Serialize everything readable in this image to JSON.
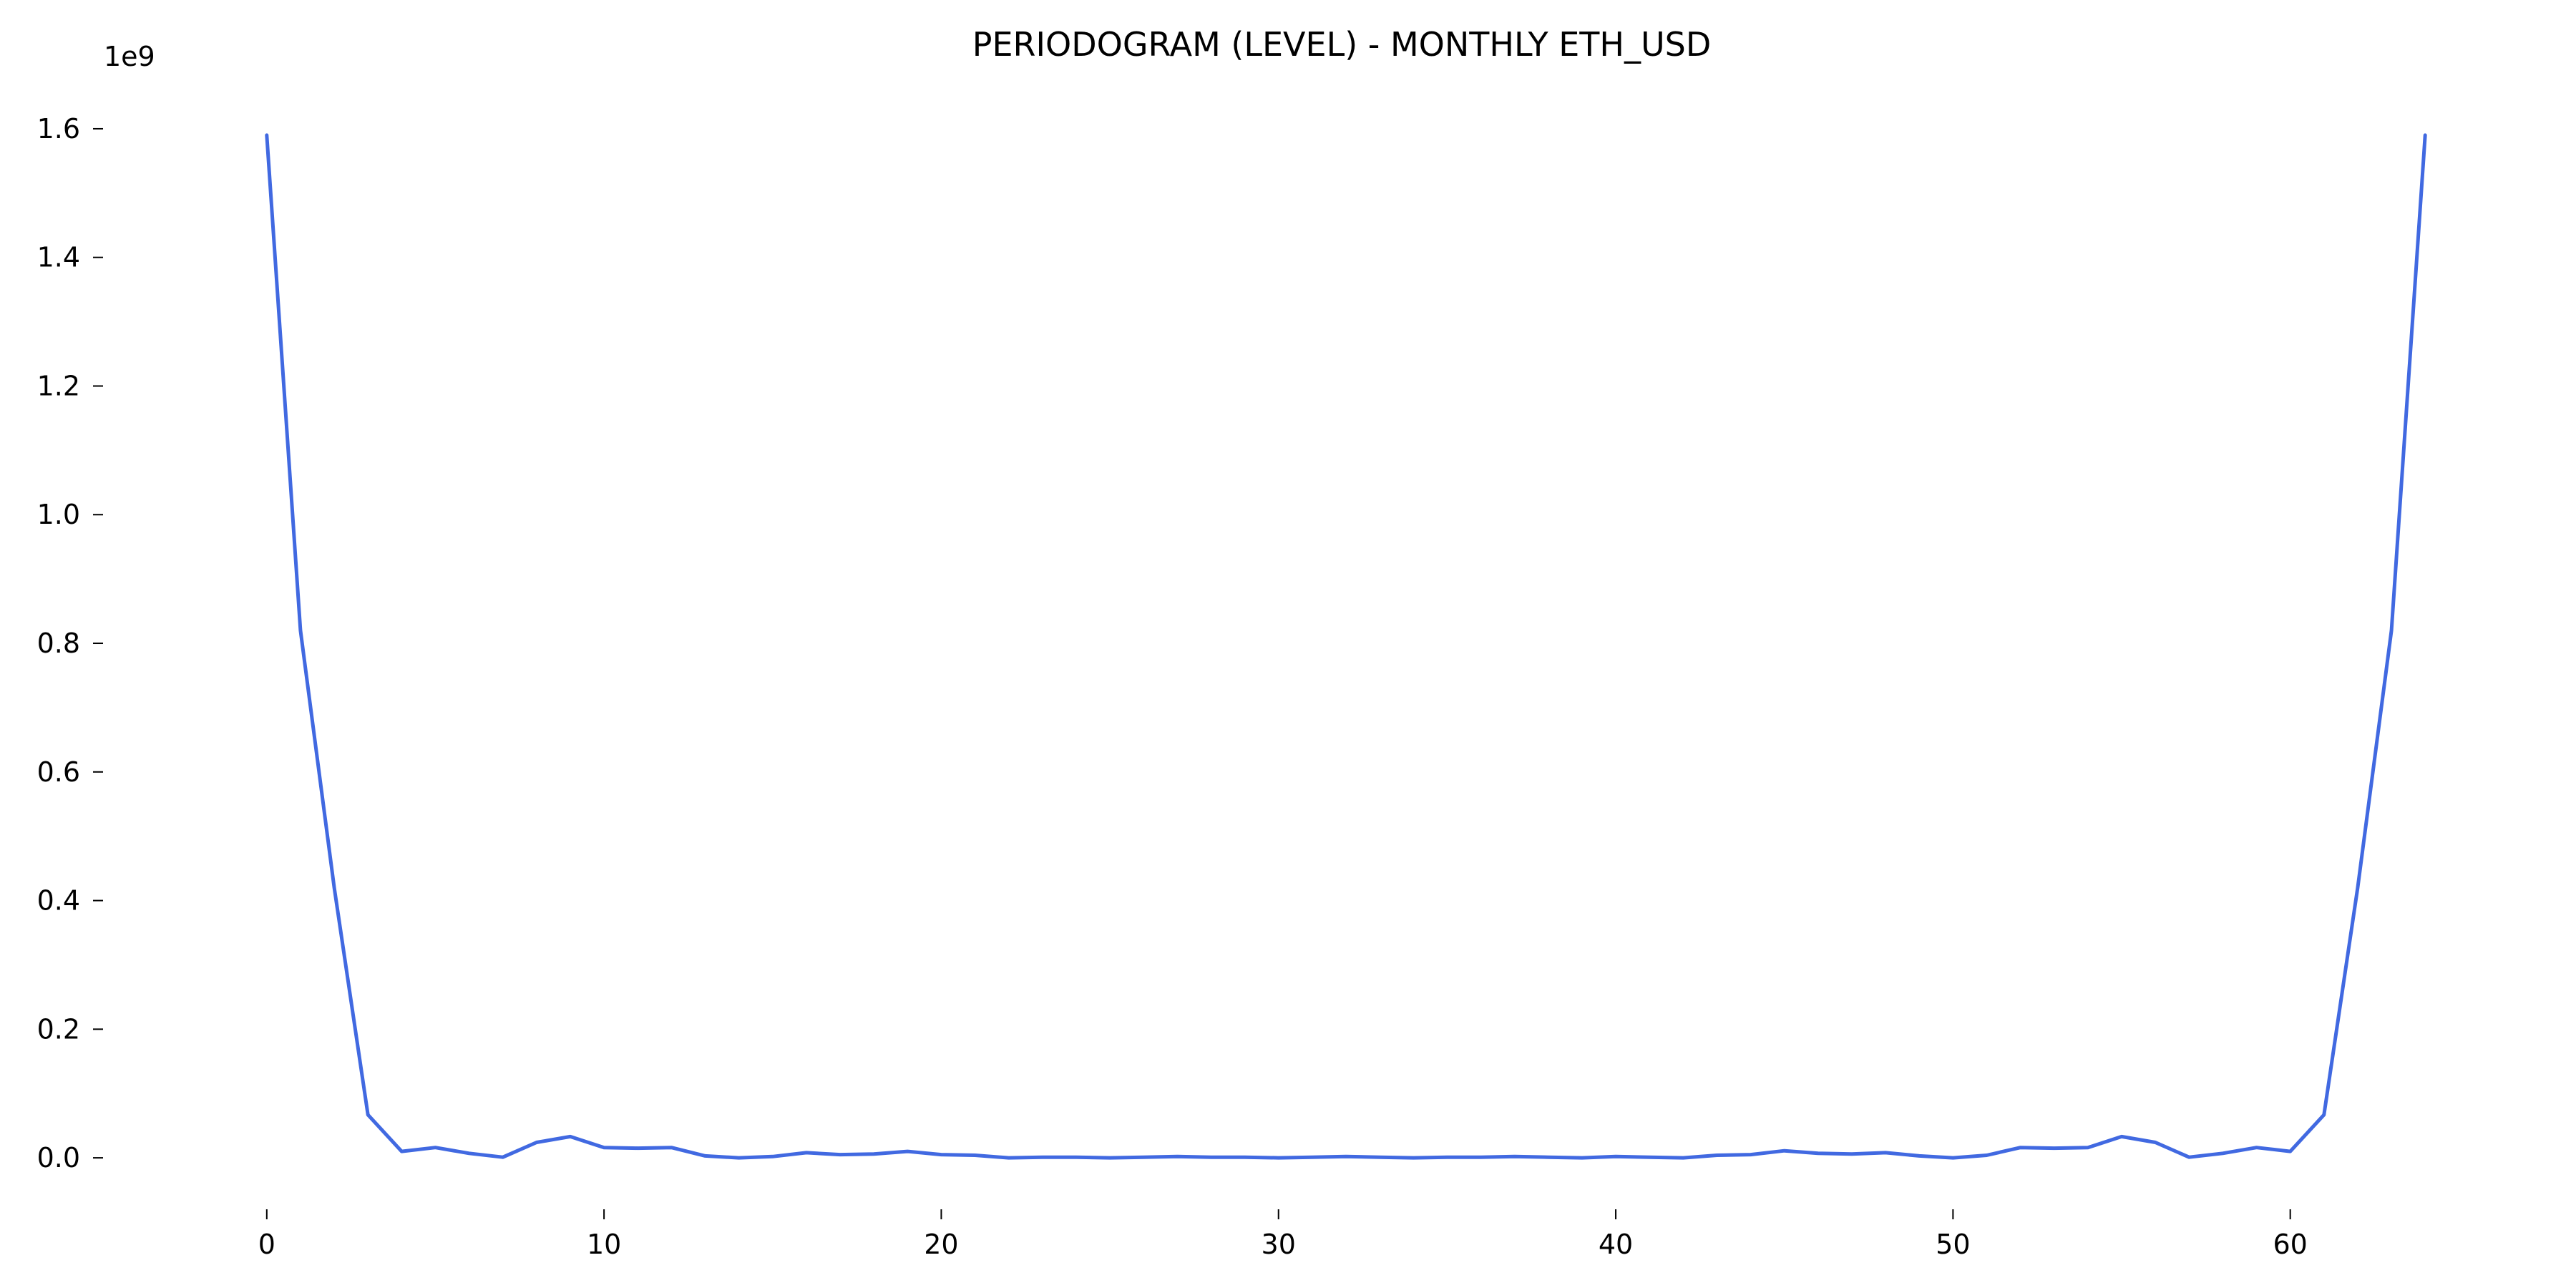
{
  "chart_data": {
    "type": "line",
    "title": "PERIODOGRAM (LEVEL) - MONTHLY ETH_USD",
    "xlabel": "",
    "ylabel": "",
    "y_offset_label": "1e9",
    "xlim": [
      -3.2,
      67.2
    ],
    "ylim": [
      -0.08,
      1.65
    ],
    "x_ticks": [
      0,
      10,
      20,
      30,
      40,
      50,
      60
    ],
    "y_ticks": [
      0.0,
      0.2,
      0.4,
      0.6,
      0.8,
      1.0,
      1.2,
      1.4,
      1.6
    ],
    "y_tick_labels": [
      "0.0",
      "0.2",
      "0.4",
      "0.6",
      "0.8",
      "1.0",
      "1.2",
      "1.4",
      "1.6"
    ],
    "x_tick_labels": [
      "0",
      "10",
      "20",
      "30",
      "40",
      "50",
      "60"
    ],
    "grid": false,
    "line_color": "#4169e1",
    "series": [
      {
        "x": [
          0,
          1,
          2,
          3,
          4,
          5,
          6,
          7,
          8,
          9,
          10,
          11,
          12,
          13,
          14,
          15,
          16,
          17,
          18,
          19,
          20,
          21,
          22,
          23,
          24,
          25,
          26,
          27,
          28,
          29,
          30,
          31,
          32,
          33,
          34,
          35,
          36,
          37,
          38,
          39,
          40,
          41,
          42,
          43,
          44,
          45,
          46,
          47,
          48,
          49,
          50,
          51,
          52,
          53,
          54,
          55,
          56,
          57,
          58,
          59,
          60,
          61,
          62,
          63,
          64
        ],
        "values": [
          1.59,
          0.82,
          0.42,
          0.067,
          0.01,
          0.016,
          0.007,
          0.001,
          0.024,
          0.033,
          0.016,
          0.015,
          0.016,
          0.003,
          0.0,
          0.002,
          0.008,
          0.005,
          0.006,
          0.01,
          0.005,
          0.004,
          0.0,
          0.001,
          0.001,
          0.0,
          0.001,
          0.002,
          0.001,
          0.001,
          0.0,
          0.001,
          0.002,
          0.001,
          0.0,
          0.001,
          0.001,
          0.002,
          0.001,
          0.0,
          0.002,
          0.001,
          0.0,
          0.004,
          0.005,
          0.011,
          0.007,
          0.006,
          0.008,
          0.003,
          0.0,
          0.004,
          0.016,
          0.015,
          0.016,
          0.033,
          0.024,
          0.001,
          0.007,
          0.016,
          0.01,
          0.067,
          0.42,
          0.82,
          1.59
        ]
      }
    ]
  }
}
